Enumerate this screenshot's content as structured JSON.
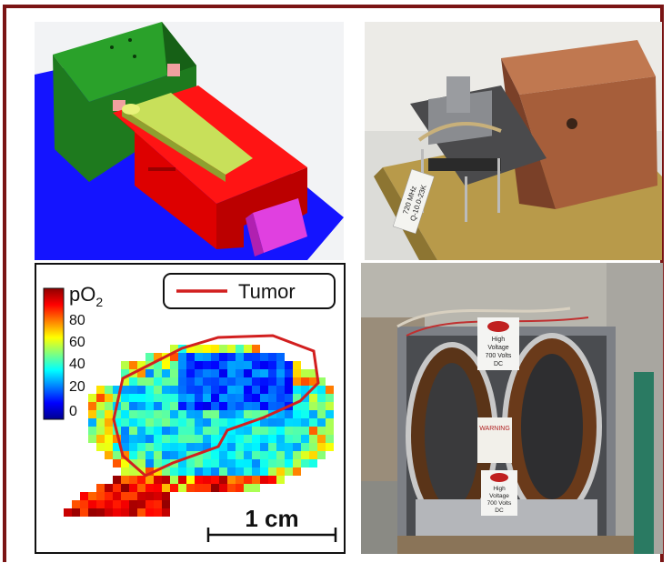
{
  "colorbar": {
    "label_main": "pO",
    "label_sub": "2",
    "ticks": [
      "80",
      "60",
      "40",
      "20",
      "0"
    ]
  },
  "legend": {
    "label": "Tumor",
    "color": "#d21f1f"
  },
  "scalebar": {
    "label": "1 cm"
  },
  "photo1": {
    "tag_line1": "720 MHz",
    "tag_line2": "Q-10.0-23K"
  },
  "photo2": {
    "sign_line1": "High",
    "sign_line2": "Voltage",
    "sign_line3": "700 Volts",
    "sign_line4": "DC",
    "warning": "WARNING"
  },
  "colors": {
    "frame": "#7a1414",
    "cad_green": "#1e7a1e",
    "cad_red": "#ff1414",
    "cad_blue": "#1414ff",
    "cad_magenta": "#e040e0",
    "cad_yellow": "#c8e05a"
  }
}
